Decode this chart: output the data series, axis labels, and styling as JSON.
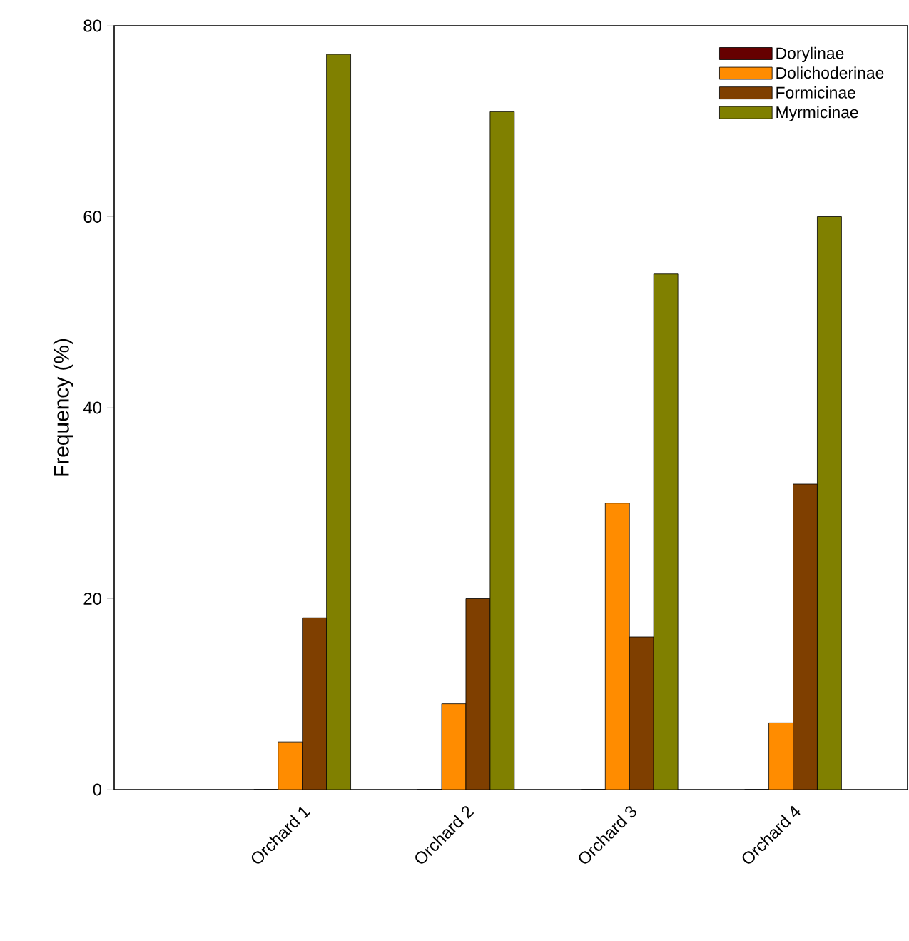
{
  "chart_data": {
    "type": "bar",
    "ylabel": "Frequency (%)",
    "categories": [
      "Orchard 1",
      "Orchard 2",
      "Orchard 3",
      "Orchard 4"
    ],
    "series": [
      {
        "name": "Dorylinae",
        "color": "#660000",
        "values": [
          0,
          0,
          0,
          0
        ]
      },
      {
        "name": "Dolichoderinae",
        "color": "#ff8c00",
        "values": [
          5,
          9,
          30,
          7
        ]
      },
      {
        "name": "Formicinae",
        "color": "#7f3f00",
        "values": [
          18,
          20,
          16,
          32
        ]
      },
      {
        "name": "Myrmicinae",
        "color": "#808000",
        "values": [
          77,
          71,
          54,
          60
        ]
      }
    ],
    "ylim": [
      0,
      80
    ],
    "yticks": [
      0,
      20,
      40,
      60,
      80
    ],
    "legend": "top right",
    "grid": false
  }
}
